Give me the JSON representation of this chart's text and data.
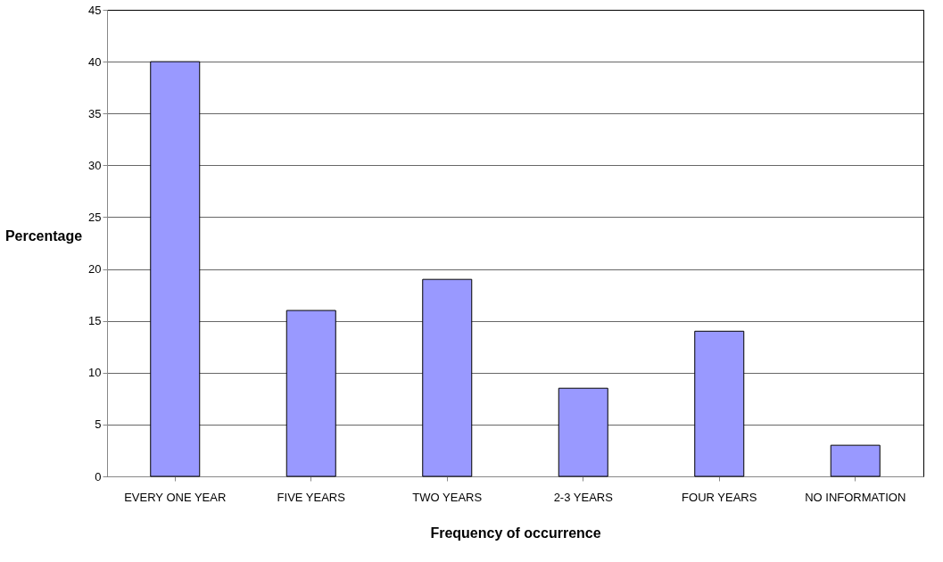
{
  "chart_data": {
    "type": "bar",
    "xlabel": "Frequency of occurrence",
    "ylabel": "Percentage",
    "categories": [
      "EVERY ONE YEAR",
      "FIVE YEARS",
      "TWO YEARS",
      "2-3 YEARS",
      "FOUR YEARS",
      "NO INFORMATION"
    ],
    "values": [
      40,
      16,
      19,
      8.5,
      14,
      3
    ],
    "color": "#9999ff",
    "ylim": [
      0,
      45
    ],
    "yticks": [
      0,
      5,
      10,
      15,
      20,
      25,
      30,
      35,
      40,
      45
    ],
    "grid": "y"
  }
}
